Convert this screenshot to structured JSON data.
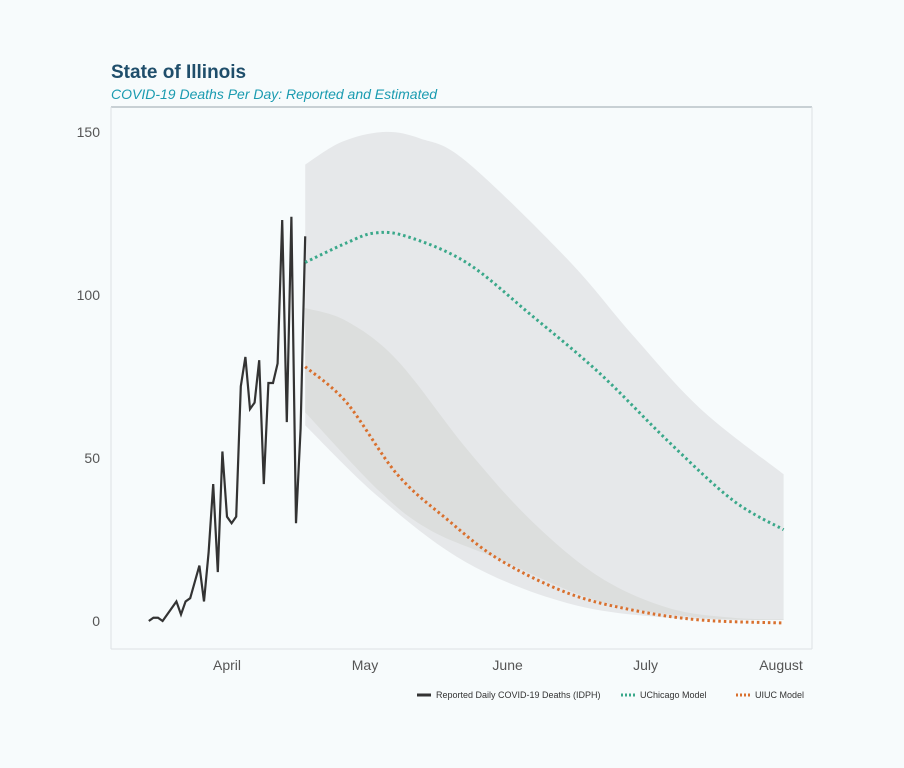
{
  "chart_data": {
    "type": "line",
    "title": "State of Illinois",
    "subtitle": "COVID-19 Deaths Per Day: Reported and Estimated",
    "xlabel": "",
    "ylabel": "",
    "ylim": [
      0,
      150
    ],
    "yticks": [
      0,
      50,
      100,
      150
    ],
    "xticks": [
      {
        "label": "April",
        "date": "Apr 1"
      },
      {
        "label": "May",
        "date": "May 1"
      },
      {
        "label": "June",
        "date": "Jun 1"
      },
      {
        "label": "July",
        "date": "Jul 1"
      },
      {
        "label": "August",
        "date": "Aug 1"
      }
    ],
    "legend_position": "bottom-right",
    "grid": false,
    "colors": {
      "reported": "#333333",
      "uchicago": "#3aa88a",
      "uiuc": "#d9702e",
      "band": "#e6e8ea",
      "band_dark": "#dcdedd"
    },
    "series": [
      {
        "name": "Reported Daily COVID-19 Deaths (IDPH)",
        "style": "solid",
        "start_date": "Mar 15",
        "values": [
          0,
          1,
          1,
          0,
          2,
          4,
          6,
          2,
          6,
          7,
          12,
          17,
          6,
          21,
          42,
          15,
          52,
          32,
          30,
          32,
          72,
          81,
          65,
          67,
          80,
          42,
          73,
          73,
          79,
          123,
          61,
          124,
          30,
          59,
          118
        ]
      },
      {
        "name": "UChicago Model",
        "style": "dotted",
        "points": [
          [
            "Apr 18",
            110
          ],
          [
            "Apr 27",
            116
          ],
          [
            "May 3",
            119
          ],
          [
            "May 10",
            118
          ],
          [
            "May 23",
            110
          ],
          [
            "Jun 6",
            94
          ],
          [
            "Jun 21",
            76
          ],
          [
            "Jul 6",
            55
          ],
          [
            "Jul 20",
            37
          ],
          [
            "Jul 31",
            28
          ]
        ],
        "band_upper": [
          [
            "Apr 18",
            140
          ],
          [
            "Apr 26",
            147
          ],
          [
            "May 5",
            150
          ],
          [
            "May 13",
            148
          ],
          [
            "May 23",
            141
          ],
          [
            "Jun 14",
            111
          ],
          [
            "Jun 28",
            88
          ],
          [
            "Jul 13",
            65
          ],
          [
            "Jul 31",
            45
          ]
        ],
        "band_lower": [
          [
            "Apr 18",
            60
          ],
          [
            "May 4",
            38
          ],
          [
            "May 23",
            18
          ],
          [
            "Jun 14",
            5.5
          ],
          [
            "Jul 6",
            1
          ],
          [
            "Jul 31",
            0.3
          ]
        ]
      },
      {
        "name": "UIUC Model",
        "style": "dotted",
        "points": [
          [
            "Apr 18",
            78
          ],
          [
            "Apr 27",
            67
          ],
          [
            "May 8",
            45
          ],
          [
            "May 19",
            31
          ],
          [
            "May 30",
            19
          ],
          [
            "Jun 14",
            8.6
          ],
          [
            "Jun 28",
            3.4
          ],
          [
            "Jul 13",
            0.3
          ],
          [
            "Jul 31",
            -0.6
          ]
        ],
        "band_upper": [
          [
            "Apr 18",
            96
          ],
          [
            "Apr 27",
            92
          ],
          [
            "May 8",
            80
          ],
          [
            "May 23",
            53
          ],
          [
            "Jun 6",
            31
          ],
          [
            "Jun 21",
            13.5
          ],
          [
            "Jul 6",
            4
          ],
          [
            "Jul 20",
            1
          ],
          [
            "Jul 31",
            0.5
          ]
        ],
        "band_lower": [
          [
            "Apr 18",
            64
          ],
          [
            "May 4",
            40
          ],
          [
            "May 15",
            28
          ],
          [
            "May 30",
            19
          ],
          [
            "Jun 21",
            6
          ],
          [
            "Jul 13",
            1
          ],
          [
            "Jul 31",
            0.3
          ]
        ]
      }
    ]
  }
}
